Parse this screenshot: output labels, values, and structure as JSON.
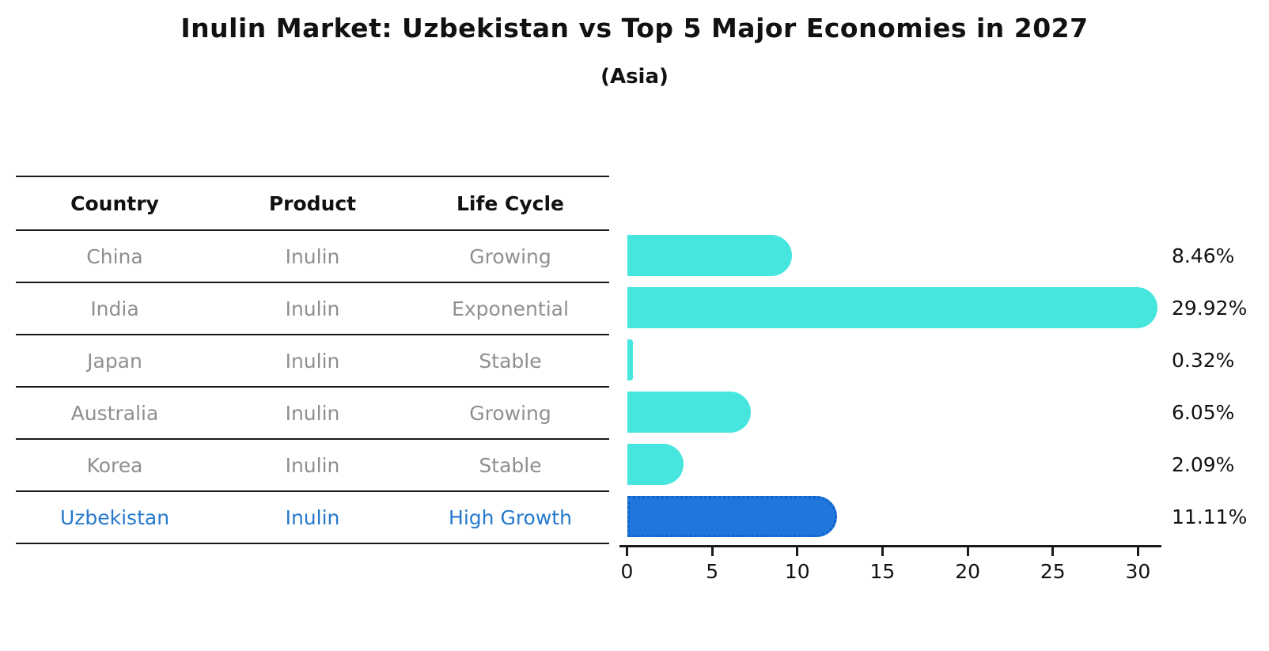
{
  "header": {
    "title": "Inulin Market: Uzbekistan vs Top 5 Major Economies in 2027",
    "subtitle": "(Asia)"
  },
  "table": {
    "columns": [
      "Country",
      "Product",
      "Life Cycle"
    ],
    "rows": [
      {
        "country": "China",
        "product": "Inulin",
        "life_cycle": "Growing",
        "highlight": false
      },
      {
        "country": "India",
        "product": "Inulin",
        "life_cycle": "Exponential",
        "highlight": false
      },
      {
        "country": "Japan",
        "product": "Inulin",
        "life_cycle": "Stable",
        "highlight": false
      },
      {
        "country": "Australia",
        "product": "Inulin",
        "life_cycle": "Growing",
        "highlight": false
      },
      {
        "country": "Korea",
        "product": "Inulin",
        "life_cycle": "Stable",
        "highlight": false
      },
      {
        "country": "Uzbekistan",
        "product": "Inulin",
        "life_cycle": "High Growth",
        "highlight": true
      }
    ]
  },
  "chart_data": {
    "type": "bar",
    "orientation": "horizontal",
    "title": "Inulin Market: Uzbekistan vs Top 5 Major Economies in 2027",
    "subtitle": "(Asia)",
    "categories": [
      "China",
      "India",
      "Japan",
      "Australia",
      "Korea",
      "Uzbekistan"
    ],
    "values": [
      8.46,
      29.92,
      0.32,
      6.05,
      2.09,
      11.11
    ],
    "value_labels": [
      "8.46%",
      "29.92%",
      "0.32%",
      "6.05%",
      "2.09%",
      "11.11%"
    ],
    "x_ticks": [
      0,
      5,
      10,
      15,
      20,
      25,
      30
    ],
    "xlim": [
      0,
      31.4
    ],
    "grid": false,
    "legend": "none",
    "highlight_index": 5
  },
  "colors": {
    "bar": "#46e5de",
    "highlight_bar": "#2176db",
    "highlight_border": "#0f62cc",
    "highlight_text": "#2579cd",
    "table_text": "#8f8f8f",
    "header_text": "#111111",
    "line": "#1a1a1a"
  }
}
